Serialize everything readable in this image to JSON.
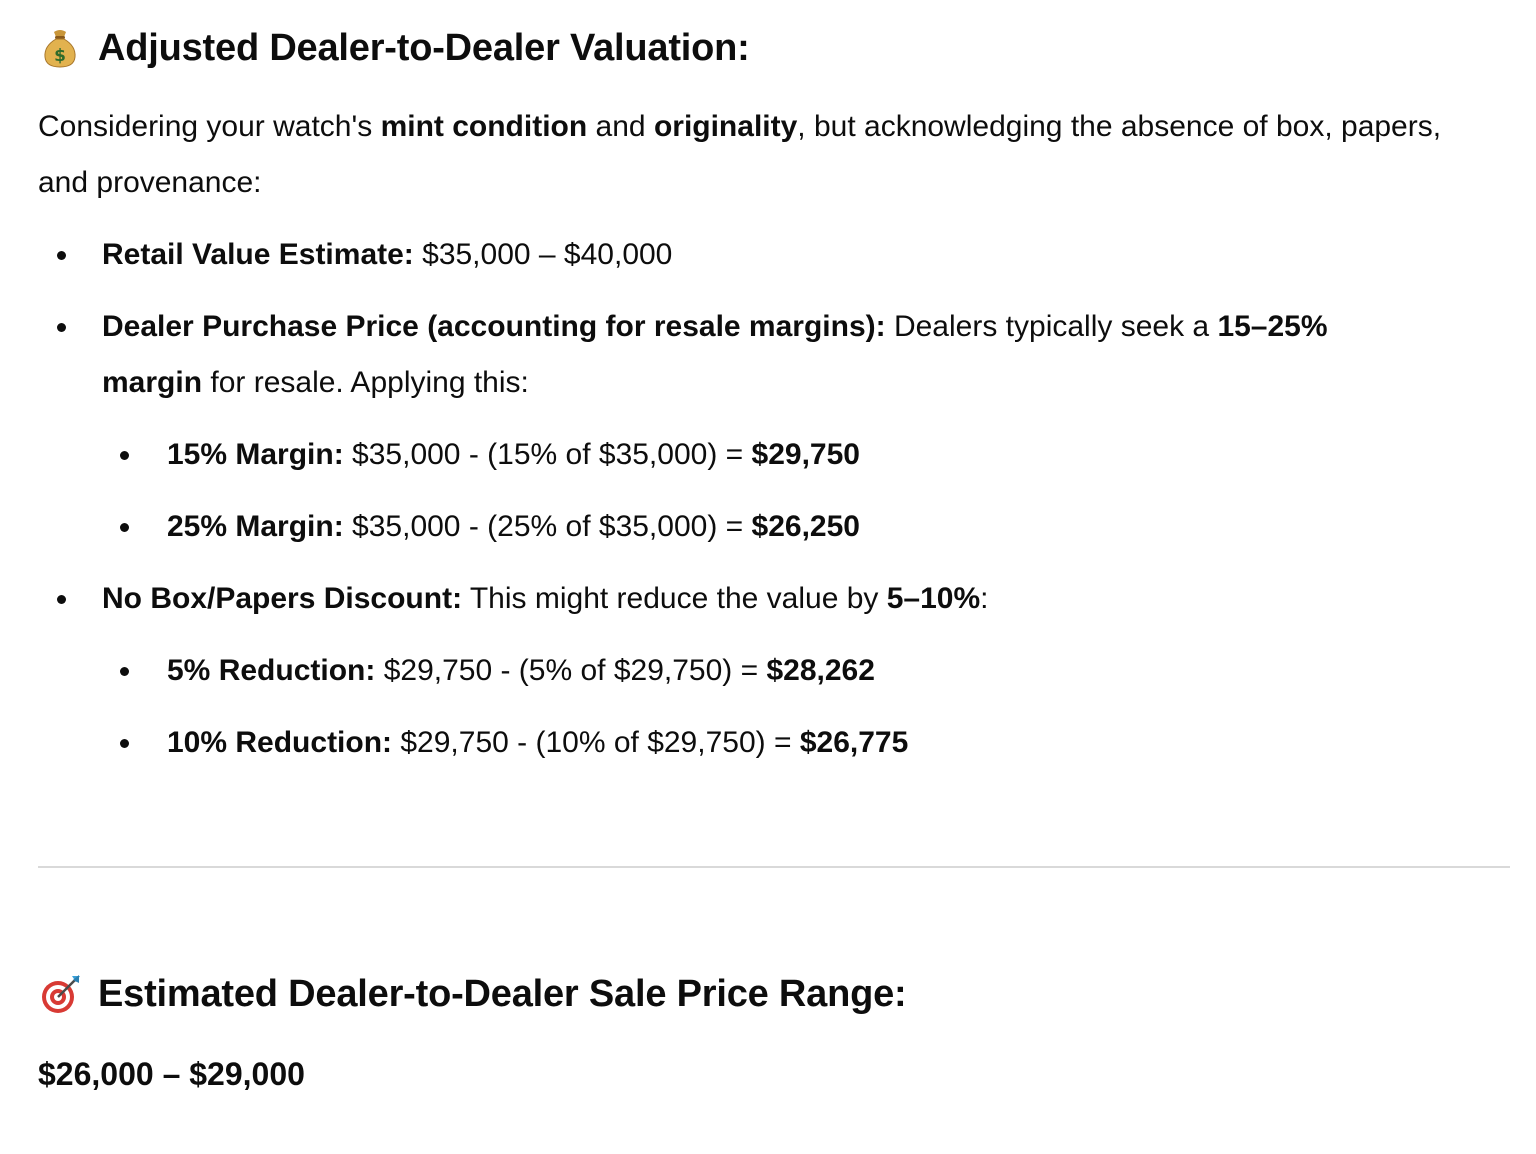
{
  "section1": {
    "icon": "money-bag-icon",
    "title": "Adjusted Dealer-to-Dealer Valuation:",
    "intro": {
      "t1": "Considering your watch's ",
      "b1": "mint condition",
      "t2": " and ",
      "b2": "originality",
      "t3": ", but acknowledging the absence of box, papers, and provenance:"
    },
    "retail": {
      "label": "Retail Value Estimate:",
      "value": " $35,000 – $40,000"
    },
    "dealer": {
      "label": "Dealer Purchase Price (accounting for resale margins):",
      "t1": " Dealers typically seek a ",
      "b1": "15–25% margin",
      "t2": " for resale. Applying this:",
      "items": [
        {
          "label": "15% Margin:",
          "calc": " $35,000 - (15% of $35,000) = ",
          "result": "$29,750"
        },
        {
          "label": "25% Margin:",
          "calc": " $35,000 - (25% of $35,000) = ",
          "result": "$26,250"
        }
      ]
    },
    "discount": {
      "label": "No Box/Papers Discount:",
      "t1": " This might reduce the value by ",
      "b1": "5–10%",
      "t2": ":",
      "items": [
        {
          "label": "5% Reduction:",
          "calc": " $29,750 - (5% of $29,750) = ",
          "result": "$28,262"
        },
        {
          "label": "10% Reduction:",
          "calc": " $29,750 - (10% of $29,750) = ",
          "result": "$26,775"
        }
      ]
    }
  },
  "section2": {
    "icon": "target-icon",
    "title": "Estimated Dealer-to-Dealer Sale Price Range:",
    "range": "$26,000 – $29,000"
  }
}
